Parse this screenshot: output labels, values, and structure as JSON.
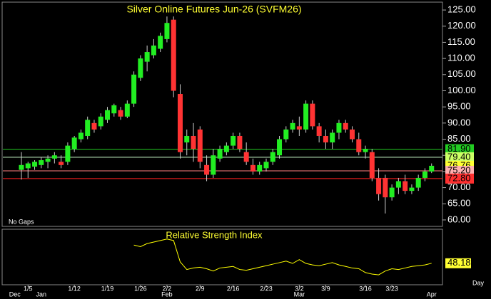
{
  "chart_data": {
    "type": "candlestick",
    "title": "Silver Online Futures Jun-26 (SVFM26)",
    "note": "No Gaps",
    "interval": "Day",
    "categories": [
      null,
      "1/5",
      null,
      null,
      null,
      null,
      null,
      null,
      "1/12",
      null,
      null,
      null,
      null,
      "1/19",
      null,
      null,
      null,
      null,
      "1/26",
      null,
      null,
      null,
      "2/2",
      null,
      null,
      null,
      null,
      "2/9",
      null,
      null,
      null,
      null,
      "2/16",
      null,
      null,
      null,
      null,
      "2/23",
      null,
      null,
      null,
      null,
      "3/2",
      null,
      null,
      null,
      "3/9",
      null,
      null,
      null,
      null,
      null,
      "3/16",
      null,
      null,
      null,
      "3/23",
      null,
      null,
      null,
      null,
      null,
      null
    ],
    "months": [
      {
        "value": -1,
        "label": "Dec"
      },
      {
        "value": 3,
        "label": "Jan"
      },
      {
        "value": 22,
        "label": "Feb"
      },
      {
        "value": 42,
        "label": "Mar"
      },
      {
        "value": 62,
        "label": "Apr"
      }
    ],
    "open": [
      75.5,
      76,
      76.5,
      77,
      78,
      79,
      78,
      78,
      82,
      85,
      86,
      90,
      89,
      91,
      93,
      94,
      92,
      96,
      104,
      109,
      111,
      113,
      116,
      122,
      99,
      84,
      86,
      88,
      77,
      74,
      79,
      81,
      83,
      86,
      81,
      77,
      75,
      76,
      78,
      80,
      85,
      88,
      89,
      88,
      96,
      89,
      86,
      84,
      87,
      90,
      88,
      85,
      81,
      81,
      73,
      73,
      67,
      70,
      72,
      69,
      70,
      73,
      75
    ],
    "high": [
      81,
      78,
      78.5,
      79.5,
      80,
      81,
      80,
      84,
      86,
      88,
      92,
      91,
      93,
      95,
      96,
      95,
      97,
      106,
      111,
      114,
      116,
      118,
      123,
      123,
      102,
      88,
      90,
      89,
      80,
      82,
      83,
      84,
      87,
      87,
      84,
      79,
      78,
      79,
      82,
      86,
      89,
      91,
      92,
      97,
      97,
      90,
      88,
      88,
      91,
      91,
      89,
      87,
      83,
      82,
      76,
      74,
      71,
      73,
      74,
      71,
      74,
      76,
      77.5
    ],
    "low": [
      72.5,
      73,
      75.5,
      76,
      76,
      77.5,
      76,
      77,
      81,
      84,
      85,
      87,
      88,
      90,
      92,
      91,
      91.5,
      95,
      103,
      106,
      110,
      112,
      115,
      98,
      79,
      80,
      78,
      76,
      72,
      73,
      78,
      80,
      82,
      81,
      77,
      74,
      74,
      75,
      77,
      79,
      84,
      87,
      86,
      87,
      88,
      84,
      82,
      82,
      85,
      87,
      84,
      80,
      79,
      72,
      66,
      62,
      66,
      68,
      68,
      68,
      69,
      72,
      74.5
    ],
    "close": [
      77,
      77.5,
      78,
      78.5,
      79,
      80,
      77,
      83,
      85.5,
      87,
      91,
      88,
      92,
      94,
      95.5,
      92,
      96,
      105,
      110,
      112,
      114,
      117,
      121,
      100,
      81,
      86,
      82,
      78,
      74,
      80,
      82,
      83,
      86,
      82,
      78,
      75,
      77,
      78,
      81,
      85,
      88,
      90,
      88,
      96,
      89,
      86,
      84,
      87,
      90,
      88,
      85,
      81,
      82,
      73,
      68,
      67,
      70,
      72,
      69,
      70,
      73,
      75,
      76.76
    ],
    "up_color": "#22ee22",
    "down_color": "#ff3333",
    "wick_color": "#cccccc",
    "ylim": [
      58,
      127
    ],
    "yticks": [
      {
        "value": 60,
        "label": "60.00"
      },
      {
        "value": 65,
        "label": "65.00"
      },
      {
        "value": 70,
        "label": "70.00"
      },
      {
        "value": 75,
        "label": "75.00"
      },
      {
        "value": 80,
        "label": "80.00"
      },
      {
        "value": 85,
        "label": "85.00"
      },
      {
        "value": 90,
        "label": "90.00"
      },
      {
        "value": 95,
        "label": "95.00"
      },
      {
        "value": 100,
        "label": "100.00"
      },
      {
        "value": 105,
        "label": "105.00"
      },
      {
        "value": 110,
        "label": "110.00"
      },
      {
        "value": 115,
        "label": "115.00"
      },
      {
        "value": 120,
        "label": "120.00"
      },
      {
        "value": 125,
        "label": "125.00"
      }
    ],
    "levels": [
      {
        "value": 81.9,
        "label": "81.90",
        "color": "#22cc22",
        "label_color": "#22cc22"
      },
      {
        "value": 79.4,
        "label": "79.40",
        "color": "#ccffcc",
        "label_color": "#ccff66"
      },
      {
        "value": 76.76,
        "label": "76.76",
        "label_color": "#ffff33"
      },
      {
        "value": 75.2,
        "label": "75.20",
        "color": "#ff8080",
        "label_color": "#ffb0b0"
      },
      {
        "value": 72.8,
        "label": "72.80",
        "color": "#ff2020",
        "label_color": "#ff3030"
      }
    ],
    "rsi": {
      "title": "Relative Strength Index",
      "color": "#ffff00",
      "ylim": [
        20,
        90
      ],
      "values": [
        null,
        null,
        null,
        null,
        null,
        null,
        null,
        null,
        null,
        null,
        null,
        null,
        null,
        null,
        null,
        null,
        null,
        72,
        70,
        74,
        76,
        78,
        80,
        78,
        50,
        40,
        42,
        43,
        41,
        38,
        42,
        43,
        44,
        40,
        39,
        41,
        43,
        45,
        47,
        49,
        51,
        48,
        53,
        48,
        46,
        45,
        47,
        49,
        46,
        44,
        42,
        41,
        36,
        34,
        33,
        38,
        41,
        40,
        42,
        44,
        45,
        46,
        48.18
      ]
    }
  }
}
